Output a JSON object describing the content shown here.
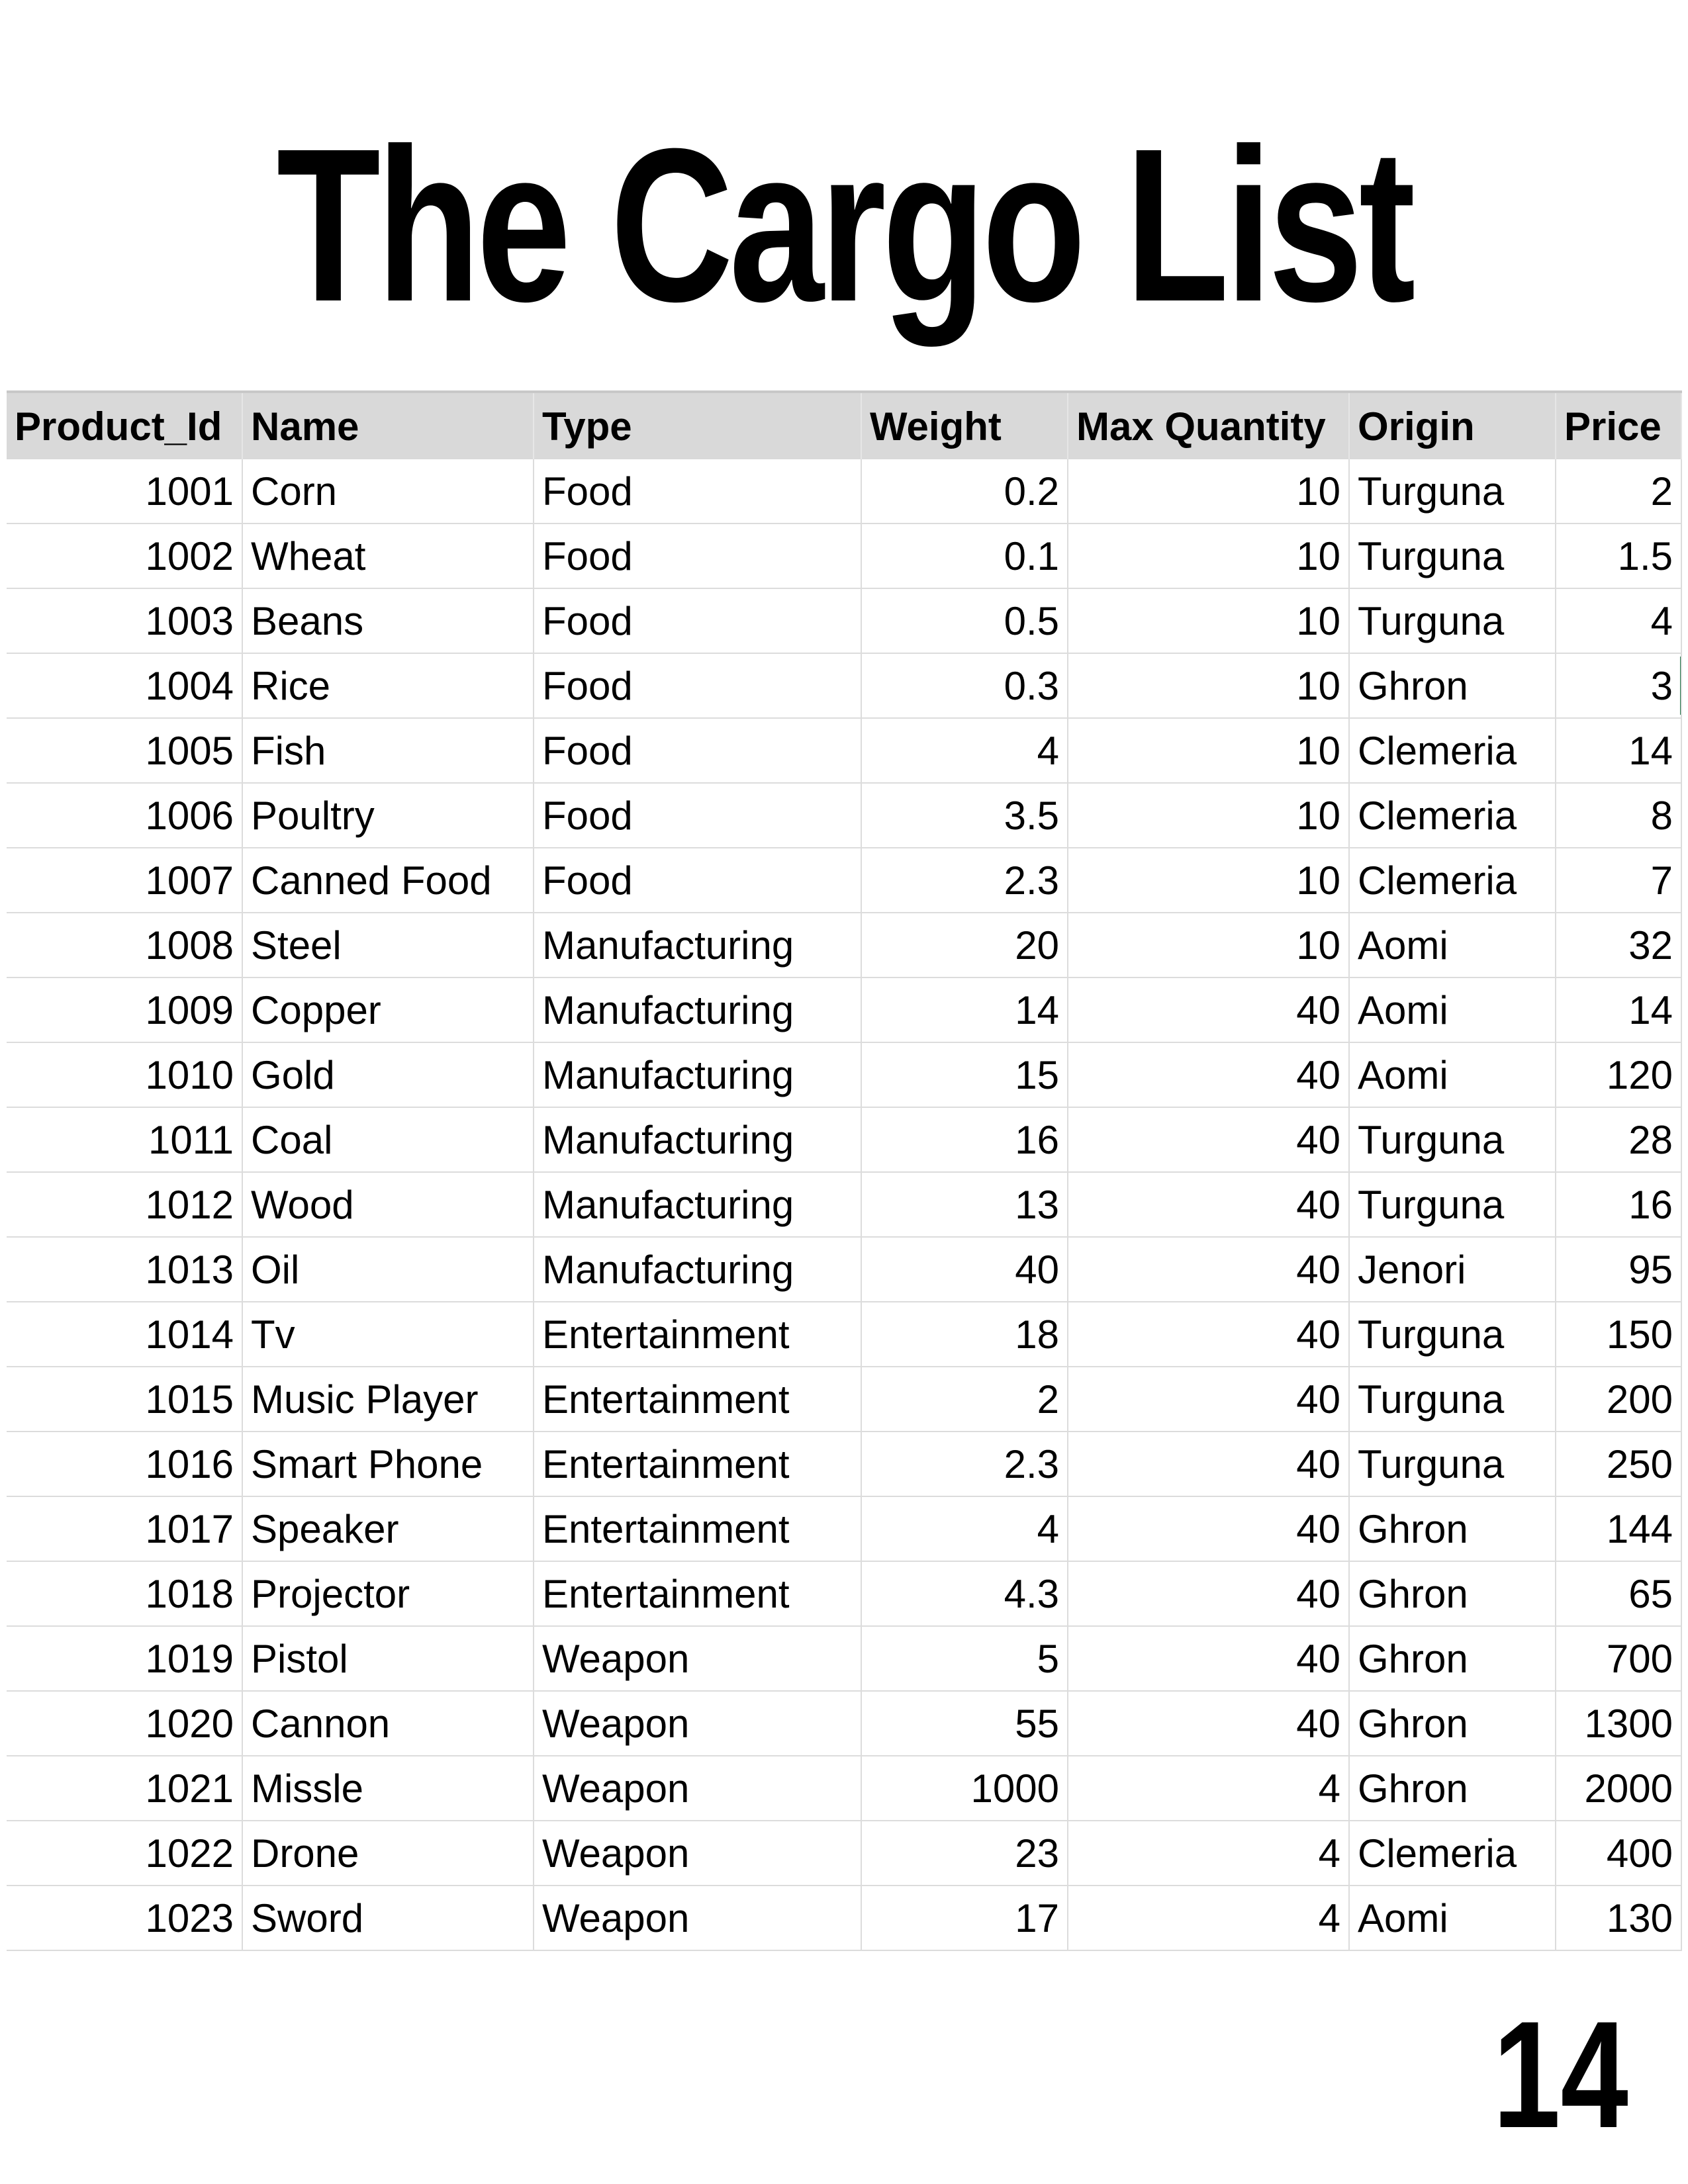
{
  "title": "The Cargo List",
  "page_number": "14",
  "table": {
    "headers": [
      "Product_Id",
      "Name",
      "Type",
      "Weight",
      "Max Quantity",
      "Origin",
      "Price"
    ],
    "rows": [
      [
        "1001",
        "Corn",
        "Food",
        "0.2",
        "10",
        "Turguna",
        "2"
      ],
      [
        "1002",
        "Wheat",
        "Food",
        "0.1",
        "10",
        "Turguna",
        "1.5"
      ],
      [
        "1003",
        "Beans",
        "Food",
        "0.5",
        "10",
        "Turguna",
        "4"
      ],
      [
        "1004",
        "Rice",
        "Food",
        "0.3",
        "10",
        "Ghron",
        "3"
      ],
      [
        "1005",
        "Fish",
        "Food",
        "4",
        "10",
        "Clemeria",
        "14"
      ],
      [
        "1006",
        "Poultry",
        "Food",
        "3.5",
        "10",
        "Clemeria",
        "8"
      ],
      [
        "1007",
        "Canned Food",
        "Food",
        "2.3",
        "10",
        "Clemeria",
        "7"
      ],
      [
        "1008",
        "Steel",
        "Manufacturing",
        "20",
        "10",
        "Aomi",
        "32"
      ],
      [
        "1009",
        "Copper",
        "Manufacturing",
        "14",
        "40",
        "Aomi",
        "14"
      ],
      [
        "1010",
        "Gold",
        "Manufacturing",
        "15",
        "40",
        "Aomi",
        "120"
      ],
      [
        "1011",
        "Coal",
        "Manufacturing",
        "16",
        "40",
        "Turguna",
        "28"
      ],
      [
        "1012",
        "Wood",
        "Manufacturing",
        "13",
        "40",
        "Turguna",
        "16"
      ],
      [
        "1013",
        "Oil",
        "Manufacturing",
        "40",
        "40",
        "Jenori",
        "95"
      ],
      [
        "1014",
        "Tv",
        "Entertainment",
        "18",
        "40",
        "Turguna",
        "150"
      ],
      [
        "1015",
        "Music Player",
        "Entertainment",
        "2",
        "40",
        "Turguna",
        "200"
      ],
      [
        "1016",
        "Smart Phone",
        "Entertainment",
        "2.3",
        "40",
        "Turguna",
        "250"
      ],
      [
        "1017",
        "Speaker",
        "Entertainment",
        "4",
        "40",
        "Ghron",
        "144"
      ],
      [
        "1018",
        "Projector",
        "Entertainment",
        "4.3",
        "40",
        "Ghron",
        "65"
      ],
      [
        "1019",
        "Pistol",
        "Weapon",
        "5",
        "40",
        "Ghron",
        "700"
      ],
      [
        "1020",
        "Cannon",
        "Weapon",
        "55",
        "40",
        "Ghron",
        "1300"
      ],
      [
        "1021",
        "Missle",
        "Weapon",
        "1000",
        "4",
        "Ghron",
        "2000"
      ],
      [
        "1022",
        "Drone",
        "Weapon",
        "23",
        "4",
        "Clemeria",
        "400"
      ],
      [
        "1023",
        "Sword",
        "Weapon",
        "17",
        "4",
        "Aomi",
        "130"
      ]
    ]
  },
  "colors": {
    "header_bg": "#d9d9d9",
    "gridline": "#dcdcdc",
    "active_cell_marker": "#1e7145"
  }
}
